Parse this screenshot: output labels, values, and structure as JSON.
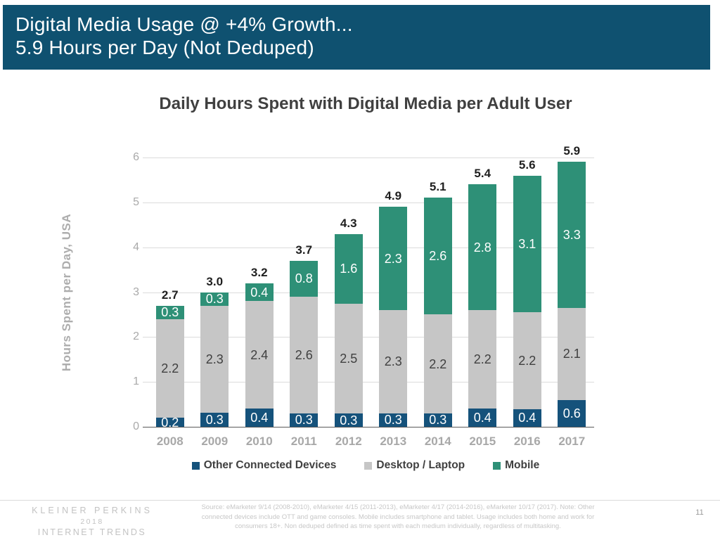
{
  "slide": {
    "header": {
      "title_line1": "Digital Media Usage @ +4% Growth...",
      "title_line2": "5.9 Hours per Day (Not Deduped)",
      "bg_color": "#0F5170"
    },
    "chart_title": "Daily Hours Spent with Digital Media per Adult User",
    "footer": {
      "brand_line1": "KLEINER PERKINS",
      "brand_line2": "2018",
      "brand_line3": "INTERNET TRENDS",
      "source_text": "Source: eMarketer 9/14 (2008-2010), eMarketer 4/15 (2011-2013), eMarketer 4/17 (2014-2016), eMarketer 10/17 (2017).  Note: Other connected devices include OTT and game consoles. Mobile includes smartphone and tablet. Usage includes both home and work for consumers 18+. Non deduped defined as time spent with each medium individually, regardless of multitasking.",
      "page_number": "11"
    }
  },
  "chart_data": {
    "type": "bar",
    "stacked": true,
    "title": "Daily Hours Spent with Digital Media per Adult User",
    "xlabel": "",
    "ylabel": "Hours Spent per Day, USA",
    "ylim": [
      0,
      6
    ],
    "yticks": [
      0,
      1,
      2,
      3,
      4,
      5,
      6
    ],
    "grid": true,
    "legend_position": "bottom",
    "categories": [
      "2008",
      "2009",
      "2010",
      "2011",
      "2012",
      "2013",
      "2014",
      "2015",
      "2016",
      "2017"
    ],
    "series": [
      {
        "name": "Other Connected Devices",
        "color": "#15527B",
        "label_color": "#FFFFFF",
        "values": [
          0.2,
          0.3,
          0.4,
          0.3,
          0.3,
          0.3,
          0.3,
          0.4,
          0.4,
          0.6
        ]
      },
      {
        "name": "Desktop / Laptop",
        "color": "#C6C6C6",
        "label_color": "#404040",
        "values": [
          2.2,
          2.3,
          2.4,
          2.6,
          2.5,
          2.3,
          2.2,
          2.2,
          2.2,
          2.1
        ]
      },
      {
        "name": "Mobile",
        "color": "#2E9077",
        "label_color": "#FFFFFF",
        "values": [
          0.3,
          0.3,
          0.4,
          0.8,
          1.6,
          2.3,
          2.6,
          2.8,
          3.1,
          3.3
        ]
      }
    ],
    "totals": [
      2.7,
      3.0,
      3.2,
      3.7,
      4.3,
      4.9,
      5.1,
      5.4,
      5.6,
      5.9
    ]
  }
}
